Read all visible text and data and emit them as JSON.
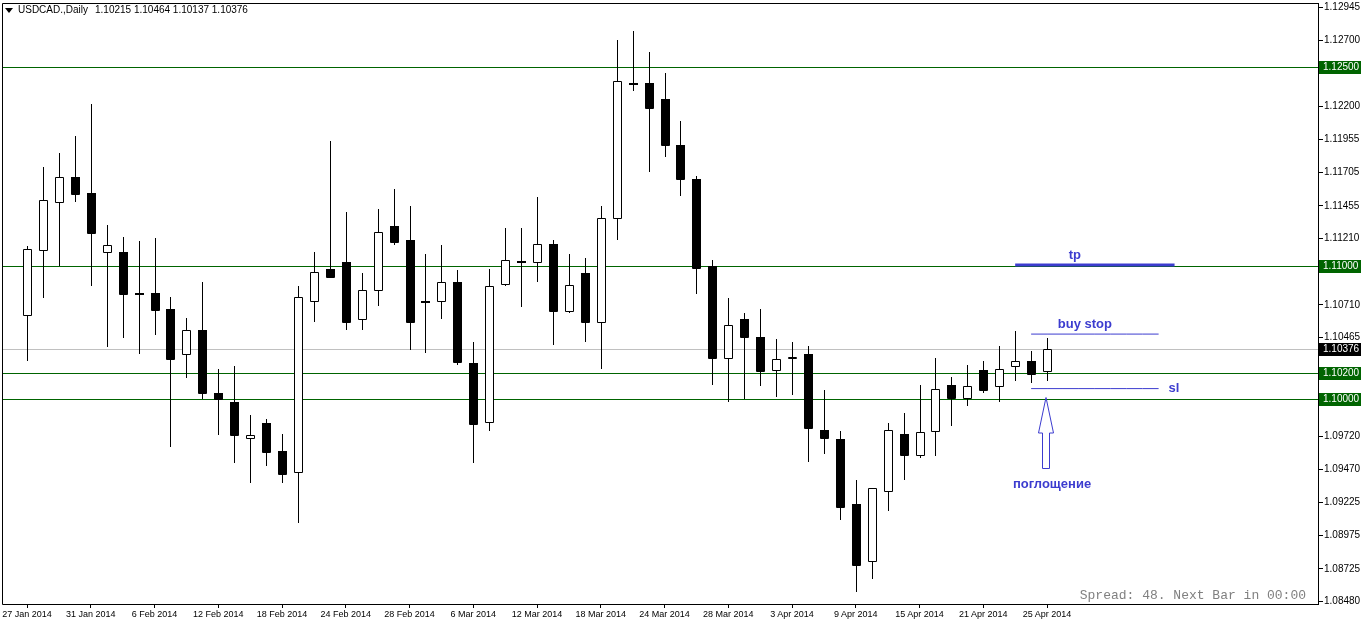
{
  "chart_data": {
    "type": "candlestick",
    "title": "USDCAD.,Daily",
    "subtitle": "1.10215 1.10464 1.10137 1.10376",
    "categories": [
      "27 Jan 2014",
      null,
      null,
      null,
      "31 Jan 2014",
      null,
      null,
      null,
      "6 Feb 2014",
      null,
      null,
      null,
      "12 Feb 2014",
      null,
      null,
      null,
      "18 Feb 2014",
      null,
      null,
      null,
      "24 Feb 2014",
      null,
      null,
      null,
      "28 Feb 2014",
      null,
      null,
      null,
      "6 Mar 2014",
      null,
      null,
      null,
      "12 Mar 2014",
      null,
      null,
      null,
      "18 Mar 2014",
      null,
      null,
      null,
      "24 Mar 2014",
      null,
      null,
      null,
      "28 Mar 2014",
      null,
      null,
      null,
      "3 Apr 2014",
      null,
      null,
      null,
      "9 Apr 2014",
      null,
      null,
      null,
      "15 Apr 2014",
      null,
      null,
      null,
      "21 Apr 2014",
      null,
      null,
      null,
      "25 Apr 2014",
      null,
      null,
      null,
      null,
      null,
      null,
      null,
      null,
      null,
      null,
      null,
      null,
      null,
      null,
      null,
      null,
      null
    ],
    "ohlc": [
      [
        1.1063,
        1.1115,
        1.1029,
        1.1113
      ],
      [
        1.1112,
        1.1175,
        1.1076,
        1.115
      ],
      [
        1.1148,
        1.1185,
        1.11,
        1.1167
      ],
      [
        1.1167,
        1.1198,
        1.1148,
        1.1154
      ],
      [
        1.1155,
        1.1222,
        1.1085,
        1.1125
      ],
      [
        1.1111,
        1.1131,
        1.1039,
        1.1116
      ],
      [
        1.1111,
        1.1122,
        1.1046,
        1.1079
      ],
      [
        1.108,
        1.1119,
        1.1034,
        1.108
      ],
      [
        1.108,
        1.1121,
        1.1048,
        1.1067
      ],
      [
        1.1068,
        1.1077,
        1.0964,
        1.103
      ],
      [
        1.1034,
        1.1061,
        1.1016,
        1.1052
      ],
      [
        1.1052,
        1.1088,
        1.1,
        1.1005
      ],
      [
        1.1005,
        1.1023,
        1.0973,
        1.1
      ],
      [
        1.0998,
        1.1025,
        1.0952,
        1.0973
      ],
      [
        1.0971,
        1.0988,
        1.0937,
        1.0973
      ],
      [
        1.0982,
        1.0985,
        1.095,
        1.096
      ],
      [
        1.0961,
        1.0974,
        1.0937,
        1.0944
      ],
      [
        1.0945,
        1.1085,
        1.0907,
        1.1077
      ],
      [
        1.1074,
        1.1111,
        1.1058,
        1.1096
      ],
      [
        1.1098,
        1.1194,
        1.1091,
        1.1092
      ],
      [
        1.1103,
        1.1141,
        1.1052,
        1.1058
      ],
      [
        1.106,
        1.1095,
        1.1052,
        1.1082
      ],
      [
        1.1082,
        1.1143,
        1.107,
        1.1126
      ],
      [
        1.113,
        1.1158,
        1.1116,
        1.1118
      ],
      [
        1.112,
        1.1145,
        1.1037,
        1.1058
      ],
      [
        1.1074,
        1.1109,
        1.1035,
        1.1074
      ],
      [
        1.1074,
        1.1116,
        1.106,
        1.1088
      ],
      [
        1.1088,
        1.1097,
        1.1026,
        1.1028
      ],
      [
        1.1027,
        1.1043,
        1.0952,
        1.0981
      ],
      [
        1.0983,
        1.1098,
        1.0976,
        1.1085
      ],
      [
        1.1087,
        1.1129,
        1.1085,
        1.1105
      ],
      [
        1.1104,
        1.1129,
        1.1069,
        1.1104
      ],
      [
        1.1103,
        1.1152,
        1.1088,
        1.1117
      ],
      [
        1.1117,
        1.112,
        1.1041,
        1.1066
      ],
      [
        1.1066,
        1.1109,
        1.1065,
        1.1086
      ],
      [
        1.1095,
        1.1106,
        1.1043,
        1.1058
      ],
      [
        1.1058,
        1.1145,
        1.1023,
        1.1136
      ],
      [
        1.1136,
        1.127,
        1.112,
        1.1239
      ],
      [
        1.1238,
        1.1277,
        1.1232,
        1.1238
      ],
      [
        1.1238,
        1.1261,
        1.1171,
        1.1219
      ],
      [
        1.1226,
        1.1245,
        1.1182,
        1.1191
      ],
      [
        1.1191,
        1.1209,
        1.1153,
        1.1166
      ],
      [
        1.1166,
        1.1168,
        1.1079,
        1.1099
      ],
      [
        1.11,
        1.1105,
        1.1011,
        1.1031
      ],
      [
        1.1031,
        1.1076,
        1.0998,
        1.1056
      ],
      [
        1.106,
        1.1065,
        1.1,
        1.1047
      ],
      [
        1.1047,
        1.1068,
        1.101,
        1.1021
      ],
      [
        1.1022,
        1.1045,
        1.1002,
        1.103
      ],
      [
        1.1031,
        1.1043,
        1.1003,
        1.1032
      ],
      [
        1.1034,
        1.104,
        1.0953,
        1.0978
      ],
      [
        1.0977,
        1.1007,
        1.0959,
        1.0971
      ],
      [
        1.097,
        1.0976,
        1.0909,
        1.0919
      ],
      [
        1.0921,
        1.0939,
        1.0855,
        1.0875
      ],
      [
        1.0878,
        1.0933,
        1.0865,
        1.0933
      ],
      [
        1.0931,
        1.0982,
        1.0916,
        1.0977
      ],
      [
        1.0974,
        1.099,
        1.0939,
        1.0958
      ],
      [
        1.0958,
        1.1011,
        1.0956,
        1.0975
      ],
      [
        1.0976,
        1.1031,
        1.0957,
        1.1008
      ],
      [
        1.1011,
        1.1017,
        1.098,
        1.1001
      ],
      [
        1.1001,
        1.1026,
        1.0995,
        1.101
      ],
      [
        1.1022,
        1.1029,
        1.1005,
        1.1007
      ],
      [
        1.101,
        1.104,
        1.0998,
        1.1023
      ],
      [
        1.1025,
        1.1051,
        1.1014,
        1.1029
      ],
      [
        1.1029,
        1.1036,
        1.1012,
        1.1019
      ],
      [
        1.10215,
        1.10464,
        1.10137,
        1.10376
      ],
      null,
      null,
      null,
      null,
      null,
      null,
      null,
      null,
      null,
      null,
      null,
      null,
      null,
      null,
      null,
      null,
      null
    ],
    "color": "#000000",
    "colors": [
      "#ffffff",
      "#ffffff",
      "#ffffff",
      "#000000",
      "#000000",
      "#ffffff",
      "#000000",
      "#000000",
      "#000000",
      "#000000",
      "#ffffff",
      "#000000",
      "#000000",
      "#000000",
      "#ffffff",
      "#000000",
      "#000000",
      "#ffffff",
      "#ffffff",
      "#000000",
      "#000000",
      "#ffffff",
      "#ffffff",
      "#000000",
      "#000000",
      "#000000",
      "#ffffff",
      "#000000",
      "#000000",
      "#ffffff",
      "#ffffff",
      "#000000",
      "#ffffff",
      "#000000",
      "#ffffff",
      "#000000",
      "#ffffff",
      "#ffffff",
      "#000000",
      "#000000",
      "#000000",
      "#000000",
      "#000000",
      "#000000",
      "#ffffff",
      "#000000",
      "#000000",
      "#ffffff",
      "#ffffff",
      "#000000",
      "#000000",
      "#000000",
      "#000000",
      "#ffffff",
      "#ffffff",
      "#000000",
      "#ffffff",
      "#ffffff",
      "#000000",
      "#ffffff",
      "#000000",
      "#ffffff",
      "#ffffff",
      "#000000",
      "#ffffff",
      null,
      null,
      null,
      null,
      null,
      null,
      null,
      null,
      null,
      null,
      null,
      null,
      null,
      null,
      null,
      null,
      null
    ],
    "series": [
      {
        "type": "line",
        "name": "tp",
        "color": "#3c3ccf",
        "values": [
          null,
          null,
          null,
          null,
          null,
          null,
          null,
          null,
          null,
          null,
          null,
          null,
          null,
          null,
          null,
          null,
          null,
          null,
          null,
          null,
          null,
          null,
          null,
          null,
          null,
          null,
          null,
          null,
          null,
          null,
          null,
          null,
          null,
          null,
          null,
          null,
          null,
          null,
          null,
          null,
          null,
          null,
          null,
          null,
          null,
          null,
          null,
          null,
          null,
          null,
          null,
          null,
          null,
          null,
          null,
          null,
          null,
          null,
          null,
          null,
          null,
          null,
          1.1101,
          1.1101,
          1.1101,
          1.1101,
          1.1101,
          1.1101,
          1.1101,
          1.1101,
          1.1101,
          1.1101,
          1.1101,
          null,
          null,
          null,
          null,
          null,
          null,
          null,
          null,
          null
        ]
      },
      {
        "type": "line",
        "name": "buy stop",
        "color": "#3c3ccf",
        "values": [
          null,
          null,
          null,
          null,
          null,
          null,
          null,
          null,
          null,
          null,
          null,
          null,
          null,
          null,
          null,
          null,
          null,
          null,
          null,
          null,
          null,
          null,
          null,
          null,
          null,
          null,
          null,
          null,
          null,
          null,
          null,
          null,
          null,
          null,
          null,
          null,
          null,
          null,
          null,
          null,
          null,
          null,
          null,
          null,
          null,
          null,
          null,
          null,
          null,
          null,
          null,
          null,
          null,
          null,
          null,
          null,
          null,
          null,
          null,
          null,
          null,
          null,
          null,
          1.1049,
          1.1049,
          1.1049,
          1.1049,
          1.1049,
          1.1049,
          1.1049,
          1.1049,
          1.1049,
          null,
          null,
          null,
          null,
          null,
          null,
          null,
          null,
          null,
          null
        ]
      },
      {
        "type": "line",
        "name": "sl",
        "color": "#3c3ccf",
        "values": [
          null,
          null,
          null,
          null,
          null,
          null,
          null,
          null,
          null,
          null,
          null,
          null,
          null,
          null,
          null,
          null,
          null,
          null,
          null,
          null,
          null,
          null,
          null,
          null,
          null,
          null,
          null,
          null,
          null,
          null,
          null,
          null,
          null,
          null,
          null,
          null,
          null,
          null,
          null,
          null,
          null,
          null,
          null,
          null,
          null,
          null,
          null,
          null,
          null,
          null,
          null,
          null,
          null,
          null,
          null,
          null,
          null,
          null,
          null,
          null,
          null,
          null,
          null,
          1.1008,
          1.1008,
          1.1008,
          1.1008,
          1.1008,
          1.1008,
          1.1008,
          1.1008,
          1.1008,
          null,
          null,
          null,
          null,
          null,
          null,
          null,
          null,
          null,
          null
        ]
      }
    ],
    "ylim": [
      1.0846,
      1.1298
    ],
    "yticks": [
      1.12945,
      {
        "value": 1.127,
        "label": "1.12700"
      },
      {
        "value": 1.122,
        "label": "1.12200"
      },
      1.11955,
      1.11705,
      1.11455,
      {
        "value": 1.1121,
        "label": "1.11210"
      },
      {
        "value": 1.1071,
        "label": "1.10710"
      },
      1.10465,
      {
        "value": 1.0972,
        "label": "1.09720"
      },
      {
        "value": 1.0947,
        "label": "1.09470"
      },
      1.09225,
      1.08975,
      1.08725,
      {
        "value": 1.0848,
        "label": "1.08480"
      }
    ],
    "ref_lines": [
      {
        "axis": "y",
        "value": 1.125,
        "label": "1.12500",
        "color": "#006400"
      },
      {
        "axis": "y",
        "value": 1.11,
        "label": "1.11000",
        "color": "#006400"
      },
      {
        "axis": "y",
        "value": 1.102,
        "label": "1.10200",
        "color": "#006400"
      },
      {
        "axis": "y",
        "value": 1.1,
        "label": "1.10000",
        "color": "#006400"
      },
      {
        "axis": "y",
        "value": 1.10376,
        "label": "1.10376",
        "color": "#c0c0c0"
      }
    ],
    "annotations": [
      "поглощение",
      "Spread: 48. Next Bar in 00:00"
    ],
    "legend": false,
    "grid": false
  }
}
